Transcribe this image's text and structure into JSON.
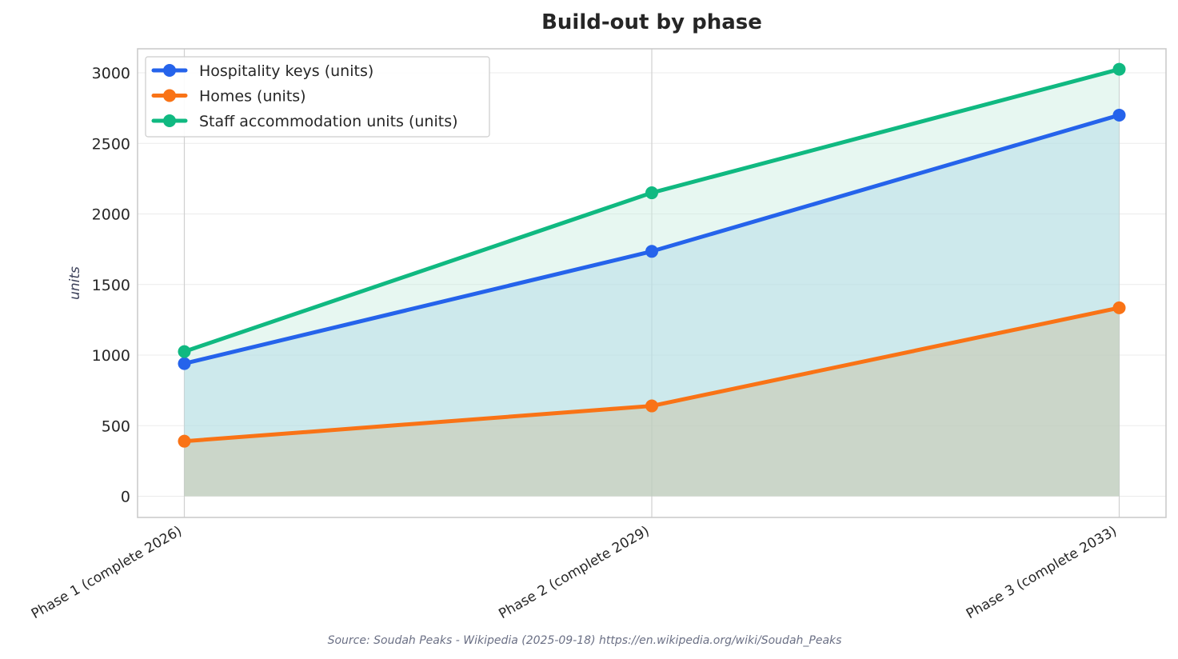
{
  "chart_data": {
    "type": "area",
    "title": "Build-out by phase",
    "xlabel": "",
    "ylabel": "units",
    "categories": [
      "Phase 1 (complete 2026)",
      "Phase 2 (complete 2029)",
      "Phase 3 (complete 2033)"
    ],
    "series": [
      {
        "name": "Hospitality keys (units)",
        "values": [
          940,
          1735,
          2700
        ],
        "color": "#2563eb",
        "fill": "#add8e6"
      },
      {
        "name": "Homes (units)",
        "values": [
          390,
          640,
          1335
        ],
        "color": "#f97316",
        "fill": "#c8b58a"
      },
      {
        "name": "Staff accommodation units (units)",
        "values": [
          1025,
          2150,
          3025
        ],
        "color": "#10b981",
        "fill": "#c9eee0"
      }
    ],
    "ylim": [
      -150,
      3170
    ],
    "yticks": [
      "0",
      "500",
      "1000",
      "1500",
      "2000",
      "2500",
      "3000"
    ],
    "grid": true,
    "legend_position": "top-left",
    "source": "Source: Soudah Peaks - Wikipedia (2025-09-18) https://en.wikipedia.org/wiki/Soudah_Peaks"
  }
}
